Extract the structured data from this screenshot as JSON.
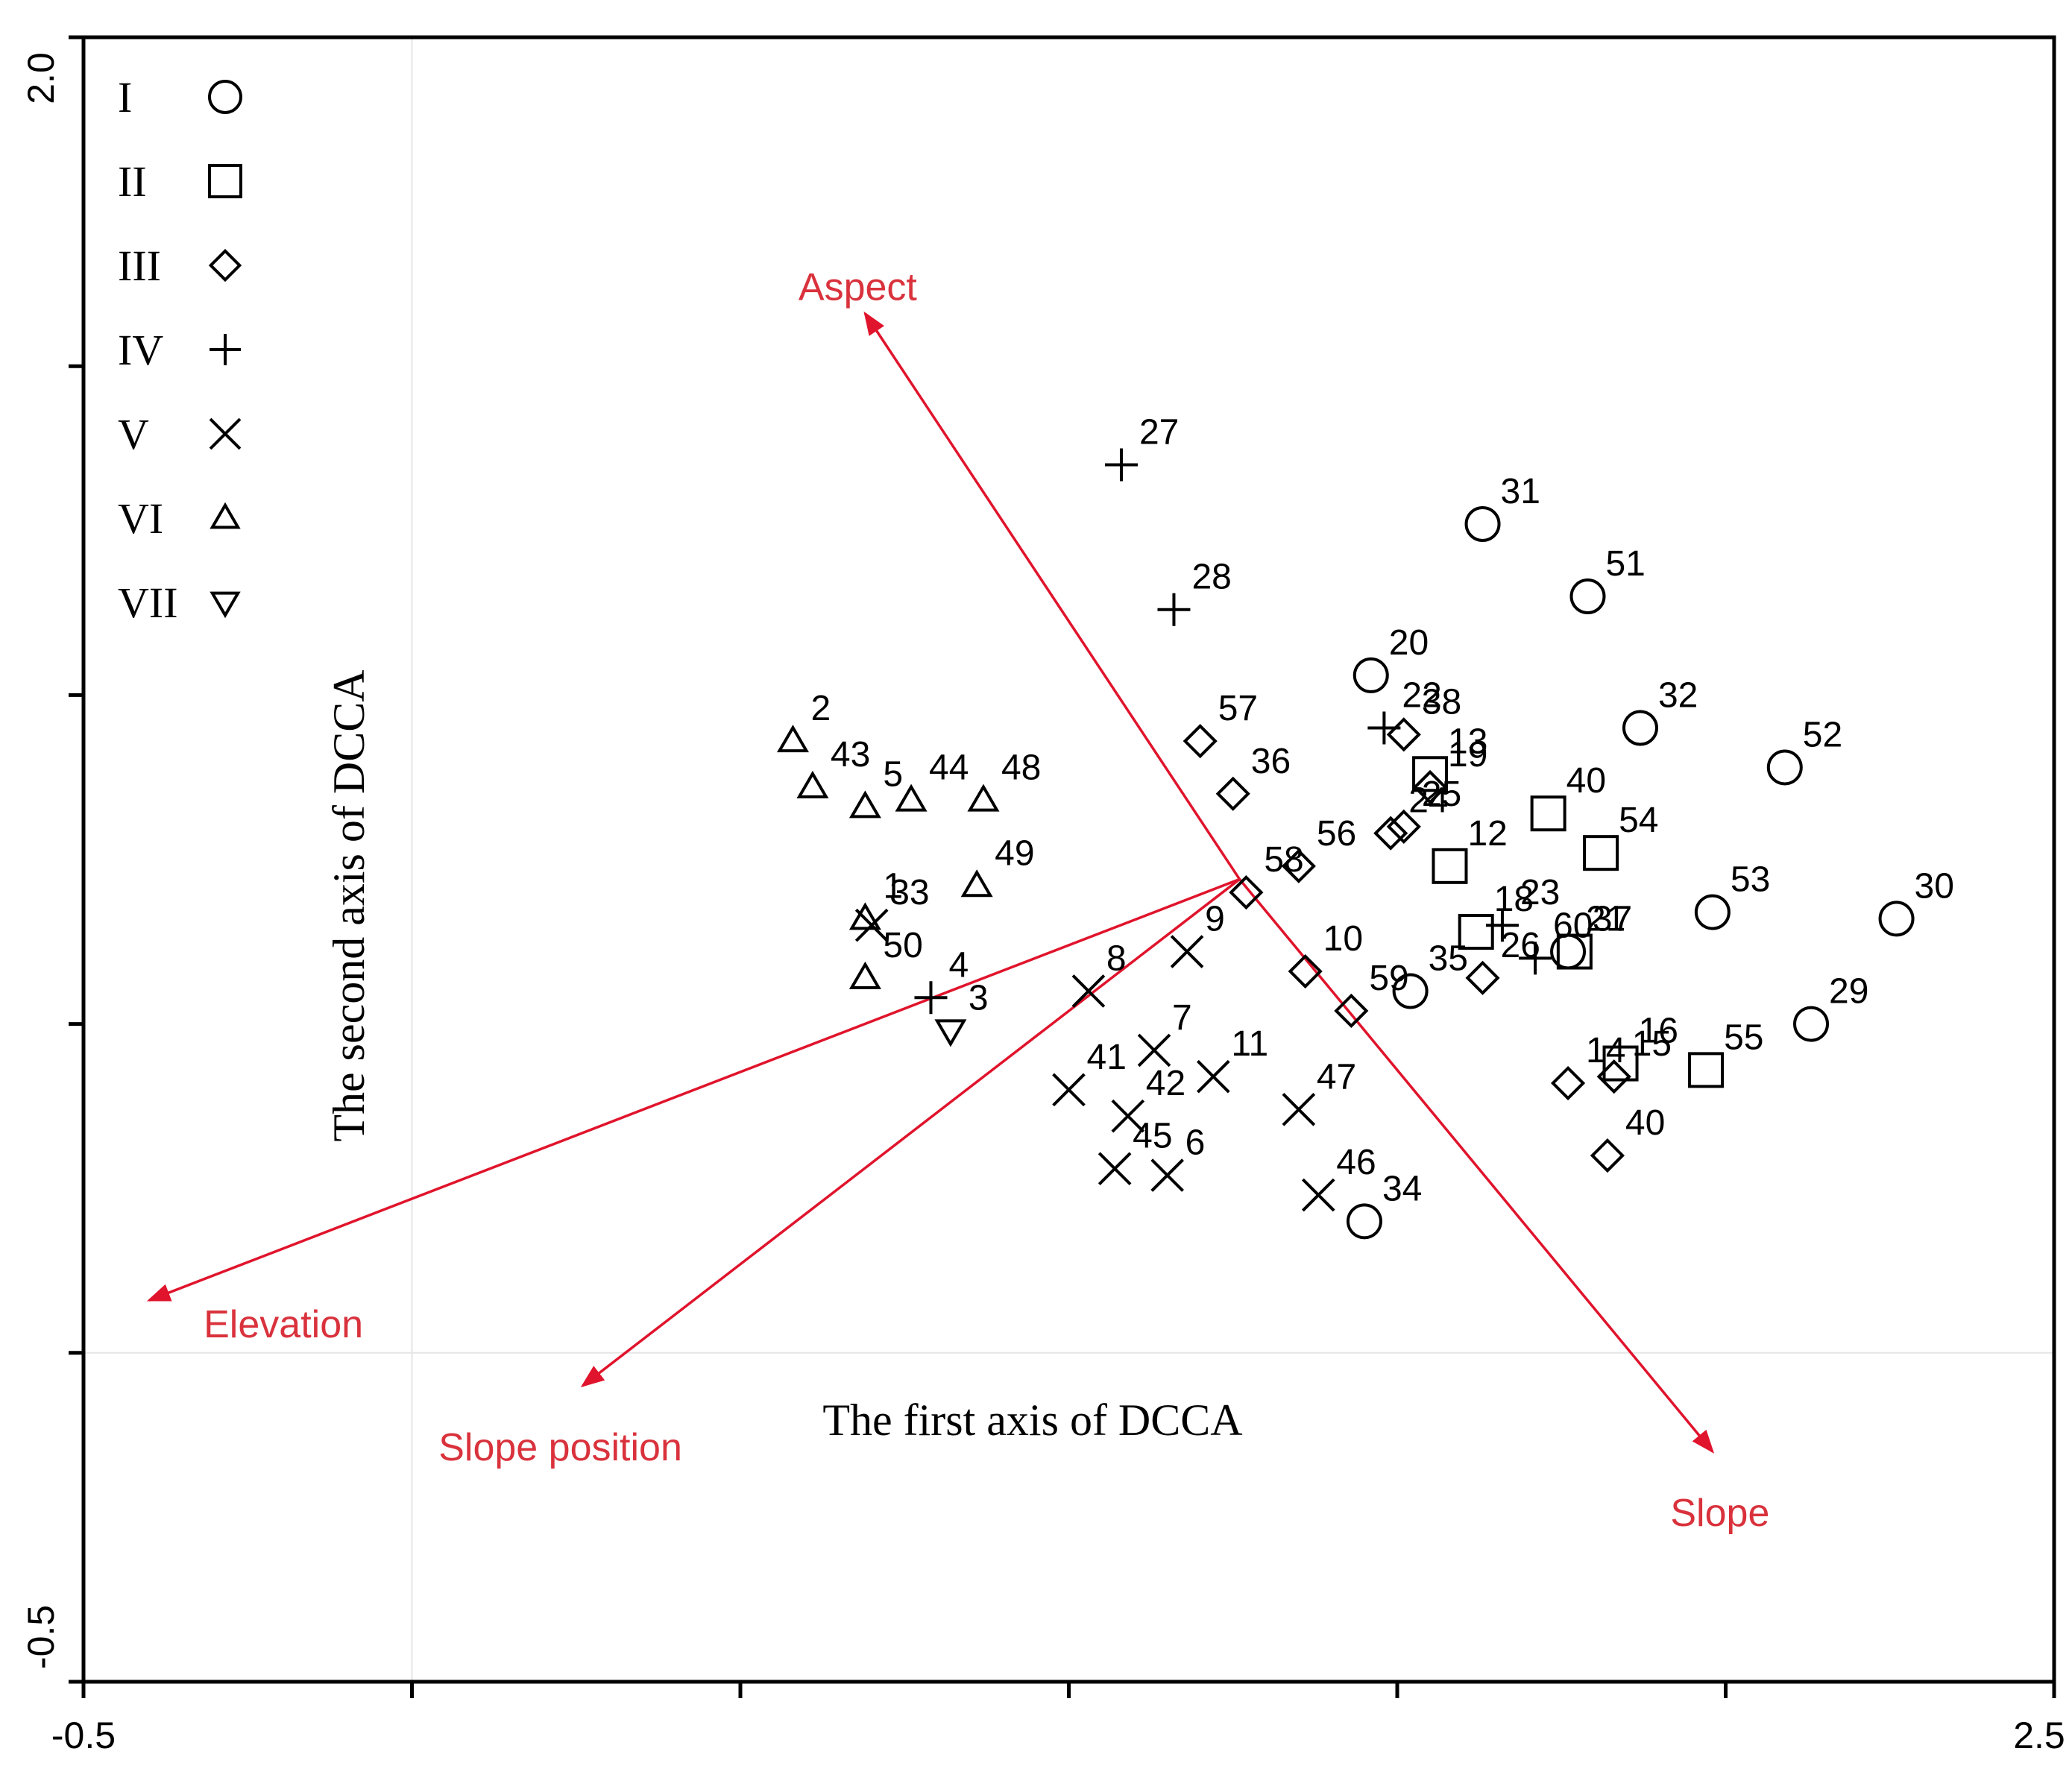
{
  "chart_data": {
    "type": "scatter",
    "title": "",
    "xlabel": "The first axis of DCCA",
    "ylabel": "The second axis of DCCA",
    "xlim": [
      -0.5,
      2.5
    ],
    "ylim": [
      -0.5,
      2.0
    ],
    "x_tick_labels": [
      "-0.5",
      "2.5"
    ],
    "y_tick_labels": [
      "2.0",
      "-0.5"
    ],
    "legend": [
      {
        "label": "I",
        "marker": "circle"
      },
      {
        "label": "II",
        "marker": "square"
      },
      {
        "label": "III",
        "marker": "diamond"
      },
      {
        "label": "IV",
        "marker": "plus"
      },
      {
        "label": "V",
        "marker": "x"
      },
      {
        "label": "VI",
        "marker": "triangle-up"
      },
      {
        "label": "VII",
        "marker": "triangle-down"
      }
    ],
    "colors": {
      "axes": "#000000",
      "vector": "#e0142c",
      "vector_label": "#d9323c",
      "grid": "#e6e6e6"
    },
    "origin": [
      1.26,
      0.72
    ],
    "vectors": [
      {
        "name": "Aspect",
        "x": 0.69,
        "y": 1.58
      },
      {
        "name": "Slope",
        "x": 1.98,
        "y": -0.15
      },
      {
        "name": "Elevation",
        "x": -0.4,
        "y": 0.08
      },
      {
        "name": "Slope position",
        "x": 0.26,
        "y": -0.05
      }
    ],
    "points": [
      {
        "label": "31",
        "group": "I",
        "x": 1.63,
        "y": 1.26
      },
      {
        "label": "51",
        "group": "I",
        "x": 1.79,
        "y": 1.15
      },
      {
        "label": "20",
        "group": "I",
        "x": 1.46,
        "y": 1.03
      },
      {
        "label": "32",
        "group": "I",
        "x": 1.87,
        "y": 0.95
      },
      {
        "label": "52",
        "group": "I",
        "x": 2.09,
        "y": 0.89
      },
      {
        "label": "53",
        "group": "I",
        "x": 1.98,
        "y": 0.67
      },
      {
        "label": "30",
        "group": "I",
        "x": 2.26,
        "y": 0.66
      },
      {
        "label": "29",
        "group": "I",
        "x": 2.13,
        "y": 0.5
      },
      {
        "label": "21",
        "group": "I",
        "x": 1.76,
        "y": 0.61
      },
      {
        "label": "35",
        "group": "I",
        "x": 1.52,
        "y": 0.55
      },
      {
        "label": "34",
        "group": "I",
        "x": 1.45,
        "y": 0.2
      },
      {
        "label": "13",
        "group": "II",
        "x": 1.55,
        "y": 0.88
      },
      {
        "label": "40",
        "group": "II",
        "x": 1.73,
        "y": 0.82
      },
      {
        "label": "54",
        "group": "II",
        "x": 1.81,
        "y": 0.76
      },
      {
        "label": "12",
        "group": "II",
        "x": 1.58,
        "y": 0.74
      },
      {
        "label": "18",
        "group": "II",
        "x": 1.62,
        "y": 0.64
      },
      {
        "label": "37",
        "group": "II",
        "x": 1.77,
        "y": 0.61
      },
      {
        "label": "16",
        "group": "II",
        "x": 1.84,
        "y": 0.44
      },
      {
        "label": "55",
        "group": "II",
        "x": 1.97,
        "y": 0.43
      },
      {
        "label": "38",
        "group": "III",
        "x": 1.51,
        "y": 0.94
      },
      {
        "label": "57",
        "group": "III",
        "x": 1.2,
        "y": 0.93
      },
      {
        "label": "36",
        "group": "III",
        "x": 1.25,
        "y": 0.85
      },
      {
        "label": "19",
        "group": "III",
        "x": 1.55,
        "y": 0.86
      },
      {
        "label": "24",
        "group": "III",
        "x": 1.49,
        "y": 0.79
      },
      {
        "label": "25",
        "group": "III",
        "x": 1.51,
        "y": 0.8
      },
      {
        "label": "56",
        "group": "III",
        "x": 1.35,
        "y": 0.74
      },
      {
        "label": "58",
        "group": "III",
        "x": 1.27,
        "y": 0.7
      },
      {
        "label": "10",
        "group": "III",
        "x": 1.36,
        "y": 0.58
      },
      {
        "label": "26",
        "group": "III",
        "x": 1.63,
        "y": 0.57
      },
      {
        "label": "59",
        "group": "III",
        "x": 1.43,
        "y": 0.52
      },
      {
        "label": "14",
        "group": "III",
        "x": 1.76,
        "y": 0.41
      },
      {
        "label": "15",
        "group": "III",
        "x": 1.83,
        "y": 0.42
      },
      {
        "label": "40",
        "group": "III",
        "x": 1.82,
        "y": 0.3
      },
      {
        "label": "27",
        "group": "IV",
        "x": 1.08,
        "y": 1.35
      },
      {
        "label": "28",
        "group": "IV",
        "x": 1.16,
        "y": 1.13
      },
      {
        "label": "22",
        "group": "IV",
        "x": 1.48,
        "y": 0.95
      },
      {
        "label": "23",
        "group": "IV",
        "x": 1.66,
        "y": 0.65
      },
      {
        "label": "60",
        "group": "IV",
        "x": 1.71,
        "y": 0.6
      },
      {
        "label": "4",
        "group": "IV",
        "x": 0.79,
        "y": 0.54
      },
      {
        "label": "33",
        "group": "V",
        "x": 0.7,
        "y": 0.65
      },
      {
        "label": "8",
        "group": "V",
        "x": 1.03,
        "y": 0.55
      },
      {
        "label": "9",
        "group": "V",
        "x": 1.18,
        "y": 0.61
      },
      {
        "label": "7",
        "group": "V",
        "x": 1.13,
        "y": 0.46
      },
      {
        "label": "11",
        "group": "V",
        "x": 1.22,
        "y": 0.42
      },
      {
        "label": "41",
        "group": "V",
        "x": 1.0,
        "y": 0.4
      },
      {
        "label": "42",
        "group": "V",
        "x": 1.09,
        "y": 0.36
      },
      {
        "label": "47",
        "group": "V",
        "x": 1.35,
        "y": 0.37
      },
      {
        "label": "45",
        "group": "V",
        "x": 1.07,
        "y": 0.28
      },
      {
        "label": "6",
        "group": "V",
        "x": 1.15,
        "y": 0.27
      },
      {
        "label": "46",
        "group": "V",
        "x": 1.38,
        "y": 0.24
      },
      {
        "label": "2",
        "group": "VI",
        "x": 0.58,
        "y": 0.93
      },
      {
        "label": "43",
        "group": "VI",
        "x": 0.61,
        "y": 0.86
      },
      {
        "label": "5",
        "group": "VI",
        "x": 0.69,
        "y": 0.83
      },
      {
        "label": "44",
        "group": "VI",
        "x": 0.76,
        "y": 0.84
      },
      {
        "label": "48",
        "group": "VI",
        "x": 0.87,
        "y": 0.84
      },
      {
        "label": "49",
        "group": "VI",
        "x": 0.86,
        "y": 0.71
      },
      {
        "label": "1",
        "group": "VI",
        "x": 0.69,
        "y": 0.66
      },
      {
        "label": "50",
        "group": "VI",
        "x": 0.69,
        "y": 0.57
      },
      {
        "label": "3",
        "group": "VII",
        "x": 0.82,
        "y": 0.49
      }
    ]
  }
}
